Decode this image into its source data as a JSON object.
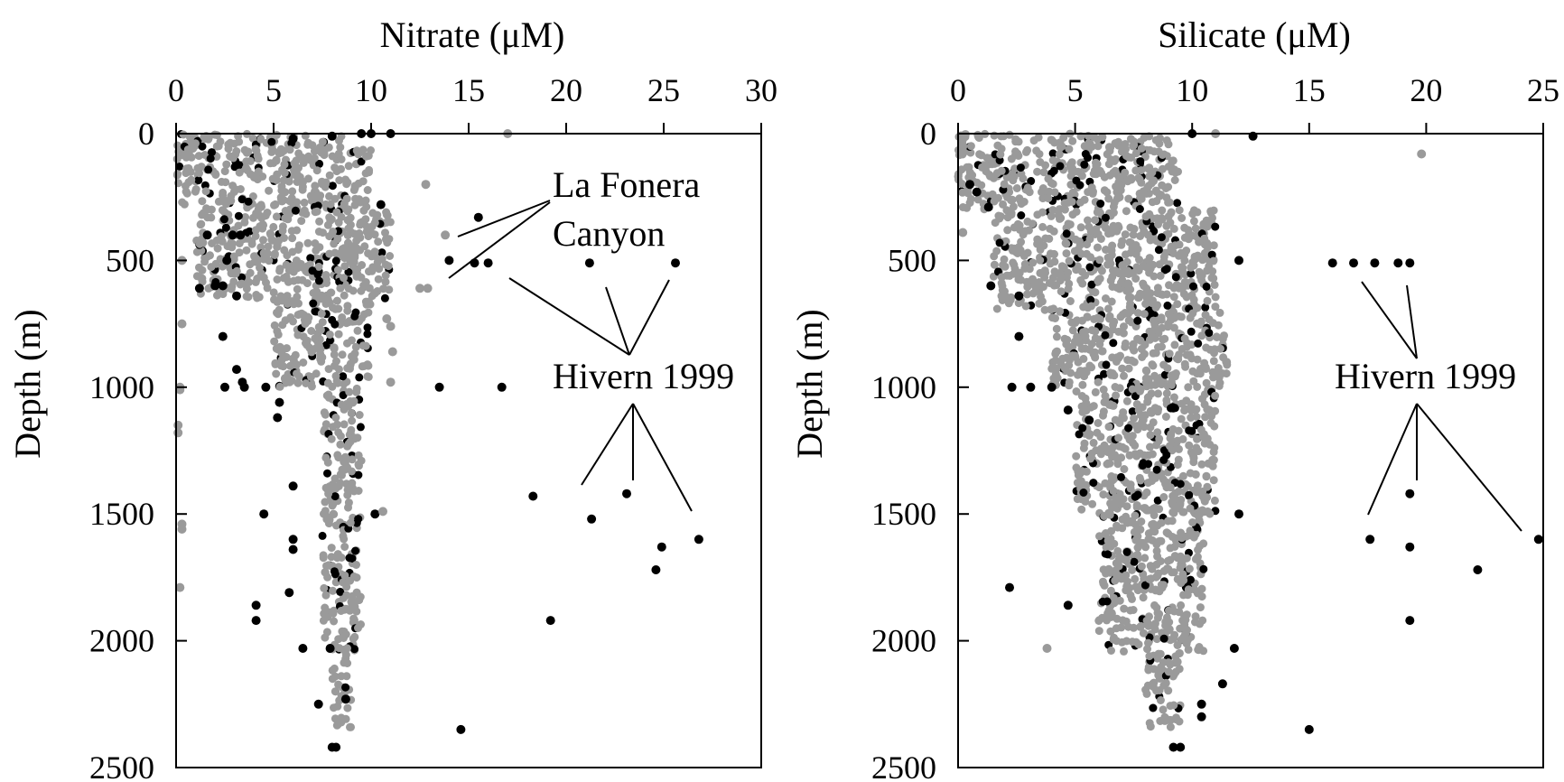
{
  "chart_data": [
    {
      "type": "scatter",
      "title": "",
      "xlabel": "Nitrate (μM)",
      "ylabel": "Depth (m)",
      "xlim": [
        0,
        30
      ],
      "ylim": [
        2500,
        0
      ],
      "x_axis_position": "top",
      "x_ticks": [
        0,
        5,
        10,
        15,
        20,
        25,
        30
      ],
      "y_ticks": [
        0,
        500,
        1000,
        1500,
        2000,
        2500
      ],
      "grid": false,
      "background_colors": {
        "grey": "#9a9a9a",
        "black": "#000000"
      },
      "background_cloud": [
        {
          "depth_range": [
            0,
            60
          ],
          "x_range": [
            0,
            9
          ]
        },
        {
          "depth_range": [
            60,
            300
          ],
          "x_range": [
            0,
            10
          ]
        },
        {
          "depth_range": [
            300,
            650
          ],
          "x_range": [
            1,
            11
          ]
        },
        {
          "depth_range": [
            650,
            1000
          ],
          "x_range": [
            5,
            10
          ]
        },
        {
          "depth_range": [
            1000,
            1500
          ],
          "x_range": [
            7.5,
            9.5
          ]
        },
        {
          "depth_range": [
            1500,
            2050
          ],
          "x_range": [
            7.5,
            9.5
          ]
        },
        {
          "depth_range": [
            2050,
            2350
          ],
          "x_range": [
            8,
            9
          ]
        }
      ],
      "series": [
        {
          "name": "La Fonera Canyon",
          "color": "#000000",
          "points": [
            [
              15.5,
              330
            ],
            [
              14,
              500
            ],
            [
              15.3,
              510
            ],
            [
              16,
              510
            ]
          ]
        },
        {
          "name": "Hivern 1999",
          "color": "#000000",
          "points": [
            [
              21.2,
              510
            ],
            [
              25.6,
              510
            ],
            [
              18.3,
              1430
            ],
            [
              23.1,
              1420
            ],
            [
              21.3,
              1520
            ],
            [
              26.8,
              1600
            ],
            [
              24.9,
              1630
            ],
            [
              24.6,
              1720
            ],
            [
              19.2,
              1920
            ],
            [
              14.6,
              2350
            ]
          ]
        },
        {
          "name": "",
          "color": "#000000",
          "points": [
            [
              9.5,
              0
            ],
            [
              10,
              0
            ],
            [
              11,
              0
            ],
            [
              8,
              10
            ],
            [
              6,
              20
            ],
            [
              10.5,
              280
            ],
            [
              13.5,
              1000
            ],
            [
              16.7,
              1000
            ],
            [
              10.2,
              1500
            ],
            [
              6,
              1390
            ],
            [
              4.5,
              1500
            ],
            [
              6,
              1640
            ],
            [
              6,
              1600
            ],
            [
              5.8,
              1810
            ],
            [
              4.1,
              1860
            ],
            [
              4.1,
              1920
            ],
            [
              6.5,
              2030
            ],
            [
              7.9,
              2030
            ],
            [
              7.3,
              2250
            ],
            [
              8.7,
              2230
            ],
            [
              8,
              2420
            ],
            [
              8.2,
              2420
            ],
            [
              2.5,
              1000
            ],
            [
              3.5,
              1000
            ],
            [
              4.6,
              1000
            ],
            [
              5.3,
              1060
            ],
            [
              5.2,
              1120
            ],
            [
              2.4,
              800
            ],
            [
              3.1,
              930
            ],
            [
              3.4,
              980
            ],
            [
              1.2,
              610
            ],
            [
              2,
              600
            ],
            [
              2.4,
              600
            ],
            [
              3.1,
              640
            ],
            [
              2.6,
              500
            ],
            [
              1.6,
              400
            ],
            [
              2.9,
              400
            ],
            [
              3.3,
              400
            ]
          ]
        },
        {
          "name": "",
          "color": "#9a9a9a",
          "points": [
            [
              17,
              0
            ],
            [
              12.8,
              200
            ],
            [
              13.8,
              400
            ],
            [
              12.5,
              610
            ],
            [
              12.9,
              610
            ],
            [
              10.8,
              730
            ],
            [
              11,
              760
            ],
            [
              11.1,
              860
            ],
            [
              11,
              980
            ],
            [
              10.6,
              1490
            ],
            [
              0.3,
              500
            ],
            [
              0.3,
              750
            ],
            [
              0.2,
              1000
            ],
            [
              0.2,
              1010
            ],
            [
              0.1,
              1150
            ],
            [
              0.1,
              1180
            ],
            [
              0.3,
              1540
            ],
            [
              0.3,
              1560
            ],
            [
              0.2,
              1790
            ]
          ]
        }
      ],
      "annotations": [
        "La Fonera",
        "Canyon",
        "Hivern 1999",
        "Hivern 1999"
      ]
    },
    {
      "type": "scatter",
      "title": "",
      "xlabel": "Silicate (μM)",
      "ylabel": "Depth (m)",
      "xlim": [
        0,
        25
      ],
      "ylim": [
        2500,
        0
      ],
      "x_axis_position": "top",
      "x_ticks": [
        0,
        5,
        10,
        15,
        20,
        25
      ],
      "y_ticks": [
        0,
        500,
        1000,
        1500,
        2000,
        2500
      ],
      "grid": false,
      "background_colors": {
        "grey": "#9a9a9a",
        "black": "#000000"
      },
      "background_cloud": [
        {
          "depth_range": [
            0,
            80
          ],
          "x_range": [
            0,
            9
          ]
        },
        {
          "depth_range": [
            80,
            300
          ],
          "x_range": [
            0,
            9.5
          ]
        },
        {
          "depth_range": [
            300,
            700
          ],
          "x_range": [
            1.5,
            11
          ]
        },
        {
          "depth_range": [
            700,
            1000
          ],
          "x_range": [
            4,
            11.5
          ]
        },
        {
          "depth_range": [
            1000,
            1500
          ],
          "x_range": [
            5,
            11
          ]
        },
        {
          "depth_range": [
            1500,
            2050
          ],
          "x_range": [
            6,
            10.5
          ]
        },
        {
          "depth_range": [
            2050,
            2350
          ],
          "x_range": [
            8,
            9.5
          ]
        }
      ],
      "series": [
        {
          "name": "Hivern 1999",
          "color": "#000000",
          "points": [
            [
              16,
              510
            ],
            [
              16.9,
              510
            ],
            [
              17.8,
              510
            ],
            [
              18.8,
              510
            ],
            [
              19.3,
              510
            ],
            [
              19.3,
              1420
            ],
            [
              24.8,
              1600
            ],
            [
              17.6,
              1600
            ],
            [
              19.3,
              1630
            ],
            [
              22.2,
              1720
            ],
            [
              19.3,
              1920
            ],
            [
              15,
              2350
            ]
          ]
        },
        {
          "name": "",
          "color": "#000000",
          "points": [
            [
              12.6,
              10
            ],
            [
              10,
              0
            ],
            [
              12,
              500
            ],
            [
              12,
              1500
            ],
            [
              11.8,
              2030
            ],
            [
              11.3,
              2170
            ],
            [
              10.4,
              2250
            ],
            [
              10.4,
              2300
            ],
            [
              9.2,
              2420
            ],
            [
              9.5,
              2420
            ],
            [
              2.2,
              1790
            ],
            [
              4.7,
              1860
            ],
            [
              2.3,
              1000
            ],
            [
              3.1,
              1000
            ],
            [
              4,
              1000
            ],
            [
              4.7,
              1090
            ],
            [
              5.6,
              1130
            ],
            [
              0.5,
              200
            ],
            [
              0.8,
              230
            ],
            [
              1.3,
              290
            ],
            [
              1.4,
              600
            ],
            [
              2.6,
              640
            ],
            [
              2.6,
              800
            ]
          ]
        },
        {
          "name": "",
          "color": "#9a9a9a",
          "points": [
            [
              19.8,
              80
            ],
            [
              11,
              0
            ],
            [
              0.2,
              390
            ],
            [
              3.8,
              2030
            ],
            [
              0.1,
              10
            ],
            [
              0.2,
              50
            ]
          ]
        }
      ],
      "annotations": [
        "Hivern 1999"
      ]
    }
  ]
}
